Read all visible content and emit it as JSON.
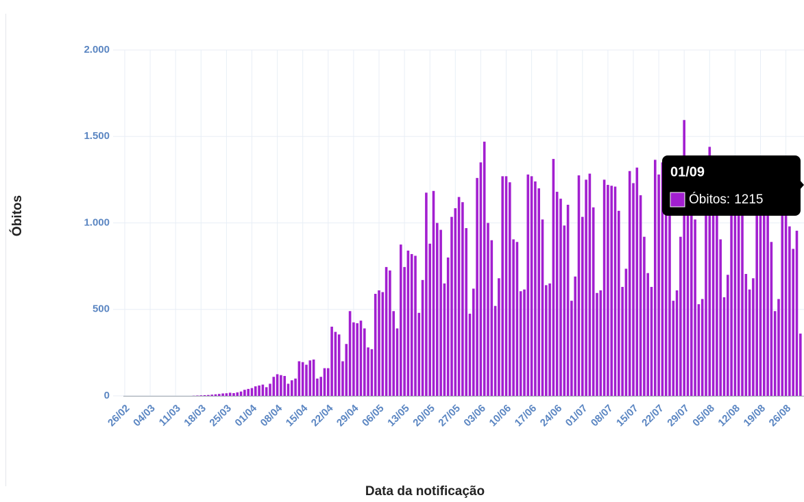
{
  "chart_data": {
    "type": "bar",
    "x_label": "Data da notificação",
    "y_label": "Óbitos",
    "color": "#a21fd0",
    "grid": true,
    "ylim": [
      0,
      2000
    ],
    "yticks": [
      0,
      500,
      {
        "value": 1000,
        "label": "1.000"
      },
      {
        "value": 1500,
        "label": "1.500"
      },
      {
        "value": 2000,
        "label": "2.000"
      }
    ],
    "categories": [
      "26/02",
      null,
      null,
      null,
      null,
      null,
      null,
      "04/03",
      null,
      null,
      null,
      null,
      null,
      null,
      "11/03",
      null,
      null,
      null,
      null,
      null,
      null,
      "18/03",
      null,
      null,
      null,
      null,
      null,
      null,
      "25/03",
      null,
      null,
      null,
      null,
      null,
      null,
      "01/04",
      null,
      null,
      null,
      null,
      null,
      null,
      "08/04",
      null,
      null,
      null,
      null,
      null,
      null,
      "15/04",
      null,
      null,
      null,
      null,
      null,
      null,
      "22/04",
      null,
      null,
      null,
      null,
      null,
      null,
      "29/04",
      null,
      null,
      null,
      null,
      null,
      null,
      "06/05",
      null,
      null,
      null,
      null,
      null,
      null,
      "13/05",
      null,
      null,
      null,
      null,
      null,
      null,
      "20/05",
      null,
      null,
      null,
      null,
      null,
      null,
      "27/05",
      null,
      null,
      null,
      null,
      null,
      null,
      "03/06",
      null,
      null,
      null,
      null,
      null,
      null,
      "10/06",
      null,
      null,
      null,
      null,
      null,
      null,
      "17/06",
      null,
      null,
      null,
      null,
      null,
      null,
      "24/06",
      null,
      null,
      null,
      null,
      null,
      null,
      "01/07",
      null,
      null,
      null,
      null,
      null,
      null,
      "08/07",
      null,
      null,
      null,
      null,
      null,
      null,
      "15/07",
      null,
      null,
      null,
      null,
      null,
      null,
      "22/07",
      null,
      null,
      null,
      null,
      null,
      null,
      "29/07",
      null,
      null,
      null,
      null,
      null,
      null,
      "05/08",
      null,
      null,
      null,
      null,
      null,
      null,
      "12/08",
      null,
      null,
      null,
      null,
      null,
      null,
      "19/08",
      null,
      null,
      null,
      null,
      null,
      null,
      "26/08",
      null,
      null,
      null,
      null
    ],
    "values": [
      0,
      0,
      0,
      0,
      0,
      0,
      0,
      0,
      0,
      0,
      0,
      0,
      0,
      0,
      0,
      0,
      0,
      0,
      0,
      1,
      2,
      3,
      4,
      5,
      7,
      9,
      11,
      14,
      15,
      18,
      16,
      20,
      25,
      35,
      40,
      45,
      55,
      60,
      65,
      50,
      70,
      110,
      125,
      120,
      115,
      70,
      90,
      100,
      200,
      195,
      180,
      205,
      210,
      100,
      110,
      160,
      160,
      400,
      370,
      355,
      200,
      300,
      490,
      425,
      420,
      435,
      390,
      280,
      270,
      590,
      610,
      600,
      745,
      725,
      490,
      390,
      875,
      745,
      840,
      820,
      810,
      480,
      670,
      1175,
      880,
      1185,
      1000,
      960,
      650,
      800,
      1035,
      1085,
      1150,
      1120,
      970,
      475,
      620,
      1260,
      1350,
      1470,
      1000,
      900,
      520,
      680,
      1270,
      1270,
      1235,
      905,
      890,
      605,
      615,
      1280,
      1270,
      1240,
      1200,
      1020,
      640,
      650,
      1370,
      1180,
      1140,
      985,
      1105,
      550,
      690,
      1275,
      1035,
      1250,
      1285,
      1090,
      595,
      610,
      1250,
      1220,
      1215,
      1210,
      1070,
      630,
      735,
      1300,
      1230,
      1320,
      1160,
      920,
      710,
      630,
      1365,
      1280,
      1350,
      1210,
      1150,
      550,
      610,
      920,
      1595,
      1300,
      1100,
      1020,
      530,
      560,
      1180,
      1440,
      1300,
      1200,
      905,
      570,
      700,
      1100,
      1150,
      1200,
      1080,
      705,
      615,
      680,
      1150,
      1200,
      1250,
      1100,
      890,
      490,
      560,
      1100,
      1050,
      980,
      850,
      955,
      360
    ],
    "tooltip": {
      "date": "01/09",
      "series_label": "Óbitos:",
      "value": 1215
    }
  }
}
